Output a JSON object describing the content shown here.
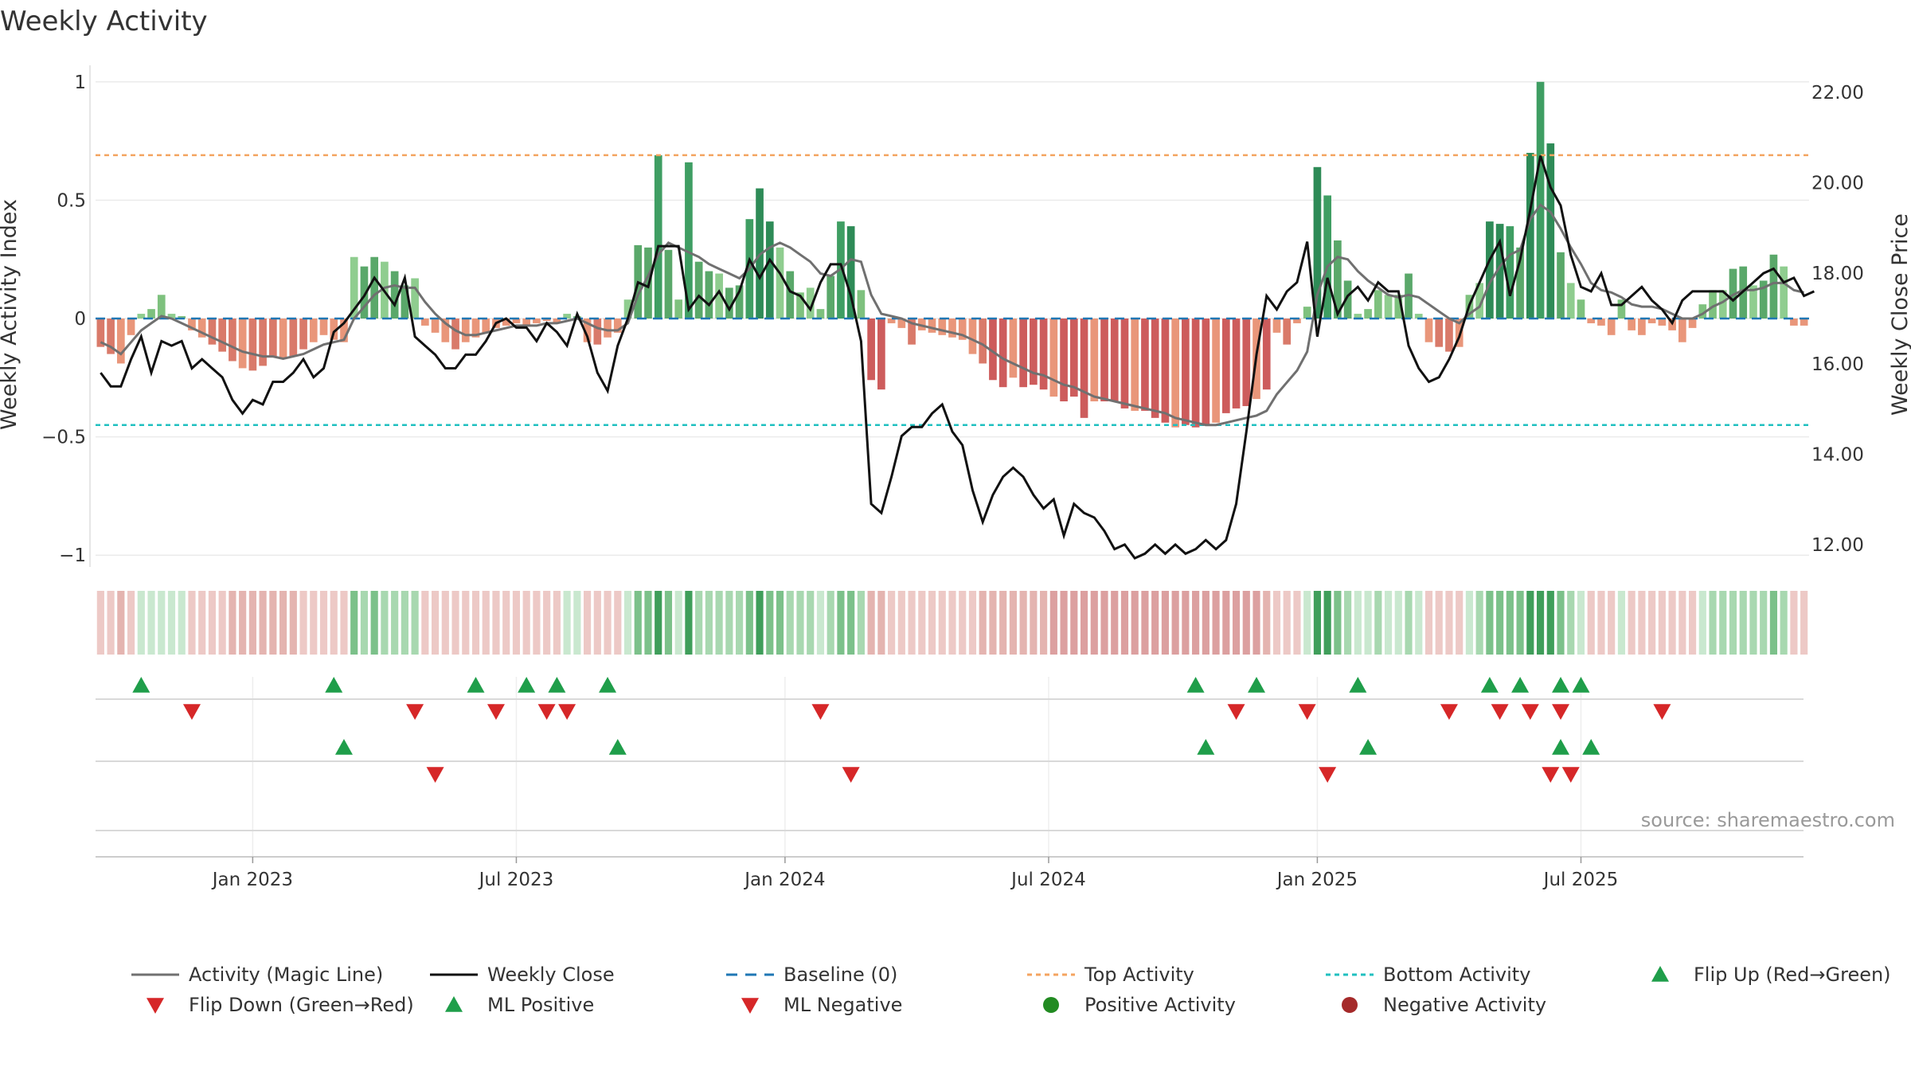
{
  "chart_data": {
    "type": "bar",
    "title": "Weekly Activity",
    "ylabel": "Weekly Activity Index",
    "y2label": "Weekly Close Price",
    "ylim": [
      -1.07,
      1.07
    ],
    "y2lim": [
      11.4,
      22.6
    ],
    "y_ticks": [
      1,
      0.5,
      0,
      -0.5,
      -1
    ],
    "y_tick_labels": [
      "1",
      "0.5",
      "0",
      "−0.5",
      "−1"
    ],
    "y2_ticks": [
      22,
      20,
      18,
      16,
      14,
      12
    ],
    "y2_tick_labels": [
      "22.00",
      "20.00",
      "18.00",
      "16.00",
      "14.00",
      "12.00"
    ],
    "x_ticks": [
      "Jan 2023",
      "Jul 2023",
      "Jan 2024",
      "Jul 2024",
      "Jan 2025",
      "Jul 2025"
    ],
    "x_tick_weeks": [
      15,
      41,
      67.5,
      93.5,
      120,
      146
    ],
    "top_activity": 0.69,
    "bottom_activity": -0.45,
    "source": "source: sharemaestro.com",
    "colors": {
      "dark_green": "#2e8b57",
      "light_green": "#7ec17e",
      "dark_red": "#cd5c5c",
      "light_red": "#e9967a",
      "magic_line": "#707070",
      "close": "#111111",
      "baseline": "#1f77b4",
      "top": "#f4a460",
      "bottom": "#20c0c0",
      "flip_up": "#1f9e4a",
      "flip_down": "#d62728"
    },
    "series": [
      {
        "name": "Activity Index",
        "values": [
          -0.12,
          -0.15,
          -0.19,
          -0.07,
          0.02,
          0.04,
          0.1,
          0.02,
          0.01,
          -0.05,
          -0.08,
          -0.11,
          -0.14,
          -0.18,
          -0.21,
          -0.22,
          -0.2,
          -0.16,
          -0.17,
          -0.16,
          -0.13,
          -0.1,
          -0.07,
          -0.09,
          -0.1,
          0.26,
          0.22,
          0.26,
          0.24,
          0.2,
          0.14,
          0.17,
          -0.03,
          -0.06,
          -0.1,
          -0.13,
          -0.1,
          -0.08,
          -0.06,
          -0.04,
          -0.03,
          -0.02,
          -0.03,
          -0.02,
          -0.01,
          -0.02,
          0.02,
          0.01,
          -0.1,
          -0.11,
          -0.08,
          -0.06,
          0.08,
          0.31,
          0.3,
          0.69,
          0.29,
          0.08,
          0.66,
          0.24,
          0.2,
          0.19,
          0.13,
          0.14,
          0.42,
          0.55,
          0.41,
          0.3,
          0.2,
          0.11,
          0.13,
          0.04,
          0.18,
          0.41,
          0.39,
          0.12,
          -0.26,
          -0.3,
          -0.02,
          -0.04,
          -0.11,
          -0.05,
          -0.06,
          -0.07,
          -0.08,
          -0.09,
          -0.15,
          -0.19,
          -0.26,
          -0.29,
          -0.25,
          -0.29,
          -0.28,
          -0.3,
          -0.33,
          -0.35,
          -0.33,
          -0.42,
          -0.35,
          -0.35,
          -0.35,
          -0.38,
          -0.39,
          -0.39,
          -0.42,
          -0.44,
          -0.46,
          -0.45,
          -0.46,
          -0.45,
          -0.44,
          -0.4,
          -0.38,
          -0.37,
          -0.34,
          -0.3,
          -0.06,
          -0.11,
          -0.02,
          0.05,
          0.64,
          0.52,
          0.33,
          0.16,
          0.02,
          0.04,
          0.12,
          0.1,
          0.1,
          0.19,
          0.02,
          -0.1,
          -0.12,
          -0.14,
          -0.12,
          0.1,
          0.15,
          0.41,
          0.4,
          0.39,
          0.3,
          0.7,
          1.0,
          0.74,
          0.28,
          0.15,
          0.08,
          -0.02,
          -0.03,
          -0.07,
          0.08,
          -0.05,
          -0.07,
          -0.02,
          -0.03,
          -0.05,
          -0.1,
          -0.04,
          0.06,
          0.12,
          0.12,
          0.21,
          0.22,
          0.14,
          0.16,
          0.27,
          0.22,
          -0.03,
          -0.03
        ]
      },
      {
        "name": "Activity (Magic Line)",
        "values": [
          -0.1,
          -0.12,
          -0.15,
          -0.1,
          -0.05,
          -0.02,
          0.01,
          0.0,
          -0.02,
          -0.04,
          -0.06,
          -0.08,
          -0.1,
          -0.12,
          -0.14,
          -0.15,
          -0.16,
          -0.16,
          -0.17,
          -0.16,
          -0.15,
          -0.13,
          -0.11,
          -0.1,
          -0.09,
          0.0,
          0.05,
          0.1,
          0.13,
          0.14,
          0.13,
          0.13,
          0.07,
          0.02,
          -0.02,
          -0.05,
          -0.07,
          -0.07,
          -0.06,
          -0.05,
          -0.04,
          -0.03,
          -0.03,
          -0.03,
          -0.02,
          -0.02,
          -0.01,
          0.0,
          -0.02,
          -0.04,
          -0.05,
          -0.05,
          -0.02,
          0.1,
          0.18,
          0.27,
          0.32,
          0.3,
          0.28,
          0.26,
          0.23,
          0.21,
          0.19,
          0.17,
          0.21,
          0.27,
          0.3,
          0.32,
          0.3,
          0.27,
          0.24,
          0.19,
          0.18,
          0.21,
          0.25,
          0.24,
          0.1,
          0.02,
          0.01,
          0.0,
          -0.02,
          -0.03,
          -0.04,
          -0.05,
          -0.06,
          -0.07,
          -0.09,
          -0.11,
          -0.14,
          -0.17,
          -0.19,
          -0.21,
          -0.23,
          -0.24,
          -0.26,
          -0.28,
          -0.29,
          -0.31,
          -0.33,
          -0.34,
          -0.35,
          -0.36,
          -0.37,
          -0.38,
          -0.39,
          -0.4,
          -0.42,
          -0.43,
          -0.44,
          -0.45,
          -0.45,
          -0.44,
          -0.43,
          -0.42,
          -0.41,
          -0.39,
          -0.32,
          -0.27,
          -0.22,
          -0.14,
          0.1,
          0.22,
          0.26,
          0.25,
          0.2,
          0.16,
          0.13,
          0.1,
          0.09,
          0.1,
          0.09,
          0.06,
          0.03,
          0.0,
          -0.02,
          0.02,
          0.05,
          0.15,
          0.22,
          0.27,
          0.29,
          0.42,
          0.48,
          0.45,
          0.38,
          0.3,
          0.23,
          0.15,
          0.12,
          0.11,
          0.09,
          0.06,
          0.05,
          0.05,
          0.04,
          0.02,
          0.0,
          0.0,
          0.02,
          0.05,
          0.07,
          0.1,
          0.12,
          0.12,
          0.13,
          0.15,
          0.15,
          0.12,
          0.11
        ]
      },
      {
        "name": "Weekly Close",
        "values": [
          15.8,
          15.5,
          15.5,
          16.1,
          16.6,
          15.8,
          16.5,
          16.4,
          16.5,
          15.9,
          16.1,
          15.9,
          15.7,
          15.2,
          14.9,
          15.2,
          15.1,
          15.6,
          15.6,
          15.8,
          16.1,
          15.7,
          15.9,
          16.7,
          16.9,
          17.2,
          17.5,
          17.9,
          17.6,
          17.3,
          17.9,
          16.6,
          16.4,
          16.2,
          15.9,
          15.9,
          16.2,
          16.2,
          16.5,
          16.9,
          17.0,
          16.8,
          16.8,
          16.5,
          16.9,
          16.7,
          16.4,
          17.1,
          16.6,
          15.8,
          15.4,
          16.4,
          17.0,
          17.8,
          17.7,
          18.6,
          18.6,
          18.6,
          17.2,
          17.5,
          17.3,
          17.6,
          17.2,
          17.6,
          18.3,
          17.9,
          18.3,
          18.0,
          17.6,
          17.5,
          17.2,
          17.8,
          18.2,
          18.2,
          17.5,
          16.5,
          12.9,
          12.7,
          13.5,
          14.4,
          14.6,
          14.6,
          14.9,
          15.1,
          14.5,
          14.2,
          13.2,
          12.5,
          13.1,
          13.5,
          13.7,
          13.5,
          13.1,
          12.8,
          13.0,
          12.2,
          12.9,
          12.7,
          12.6,
          12.3,
          11.9,
          12.0,
          11.7,
          11.8,
          12.0,
          11.8,
          12.0,
          11.8,
          11.9,
          12.1,
          11.9,
          12.1,
          12.9,
          14.5,
          16.2,
          17.5,
          17.2,
          17.6,
          17.8,
          18.7,
          16.6,
          17.9,
          17.1,
          17.5,
          17.7,
          17.4,
          17.8,
          17.6,
          17.6,
          16.4,
          15.9,
          15.6,
          15.7,
          16.1,
          16.6,
          17.3,
          17.8,
          18.3,
          18.7,
          17.5,
          18.3,
          19.4,
          20.6,
          19.9,
          19.5,
          18.4,
          17.7,
          17.6,
          18.0,
          17.3,
          17.3,
          17.5,
          17.7,
          17.4,
          17.2,
          16.9,
          17.4,
          17.6,
          17.6,
          17.6,
          17.6,
          17.4,
          17.6,
          17.8,
          18.0,
          18.1,
          17.8,
          17.9,
          17.5,
          17.6
        ]
      }
    ],
    "legend": [
      "Activity (Magic Line)",
      "Weekly Close",
      "Baseline (0)",
      "Top Activity",
      "Bottom Activity",
      "Flip Up (Red→Green)",
      "Flip Down (Green→Red)",
      "ML Positive",
      "ML Negative",
      "Positive Activity",
      "Negative Activity"
    ],
    "legend_placement": "bottom",
    "flip_up_weeks": [
      4,
      23,
      37,
      42,
      45,
      50,
      108,
      114,
      124,
      137,
      140,
      144,
      146
    ],
    "flip_down_weeks": [
      9,
      31,
      39,
      44,
      46,
      71,
      112,
      119,
      133,
      138,
      141,
      144,
      154
    ],
    "ml_positive_weeks": [
      24,
      51,
      109,
      125,
      144,
      147
    ],
    "ml_negative_weeks": [
      33,
      74,
      121,
      143,
      145
    ]
  }
}
